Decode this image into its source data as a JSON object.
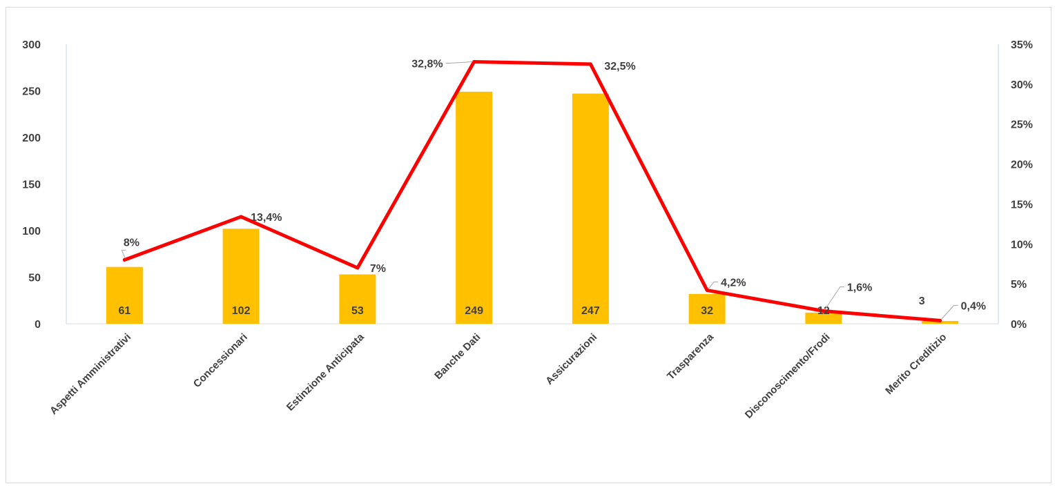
{
  "chart_data": {
    "type": "bar",
    "categories": [
      "Aspetti Amministrativi",
      "Concessionari",
      "Estinzione Anticipata",
      "Banche Dati",
      "Assicurazioni",
      "Trasparenza",
      "Disconoscimento/Frodi",
      "Merito Creditizio"
    ],
    "series": [
      {
        "type": "bar",
        "axis": "left",
        "color": "#FFC000",
        "values": [
          61,
          102,
          53,
          249,
          247,
          32,
          12,
          3
        ],
        "labels": [
          "61",
          "102",
          "53",
          "249",
          "247",
          "32",
          "12",
          "3"
        ]
      },
      {
        "type": "line",
        "axis": "right",
        "color": "#FF0000",
        "values": [
          8,
          13.4,
          7,
          32.8,
          32.5,
          4.2,
          1.6,
          0.4
        ],
        "labels": [
          "8%",
          "13,4%",
          "7%",
          "32,8%",
          "32,5%",
          "4,2%",
          "1,6%",
          "0,4%"
        ]
      }
    ],
    "y_left": {
      "ylim": [
        0,
        300
      ],
      "ticks": [
        0,
        50,
        100,
        150,
        200,
        250,
        300
      ],
      "tick_labels": [
        "0",
        "50",
        "100",
        "150",
        "200",
        "250",
        "300"
      ]
    },
    "y_right": {
      "ylim": [
        0,
        35
      ],
      "ticks": [
        0,
        5,
        10,
        15,
        20,
        25,
        30,
        35
      ],
      "tick_labels": [
        "0%",
        "5%",
        "10%",
        "15%",
        "20%",
        "25%",
        "30%",
        "35%"
      ]
    },
    "grid": false,
    "legend": "none",
    "axis_line_color": "#BDD7EE"
  }
}
